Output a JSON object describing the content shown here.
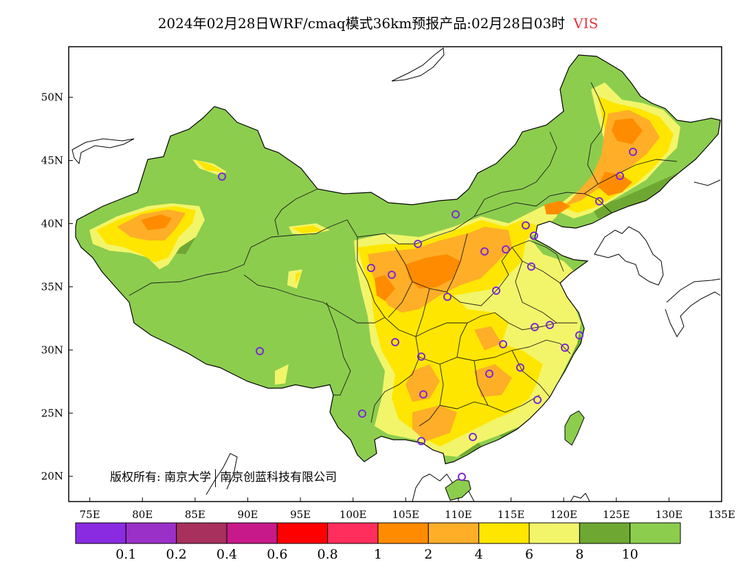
{
  "title": {
    "main": "2024年02月28日WRF/cmaq模式36km预报产品:02月28日03时",
    "variable": "VIS",
    "variable_color": "#e8343c"
  },
  "map": {
    "lon_range": [
      73,
      135
    ],
    "lat_range": [
      18,
      54
    ],
    "lon_ticks": [
      {
        "value": 75,
        "label": "75E"
      },
      {
        "value": 80,
        "label": "80E"
      },
      {
        "value": 85,
        "label": "85E"
      },
      {
        "value": 90,
        "label": "90E"
      },
      {
        "value": 95,
        "label": "95E"
      },
      {
        "value": 100,
        "label": "100E"
      },
      {
        "value": 105,
        "label": "105E"
      },
      {
        "value": 110,
        "label": "110E"
      },
      {
        "value": 115,
        "label": "115E"
      },
      {
        "value": 120,
        "label": "120E"
      },
      {
        "value": 125,
        "label": "125E"
      },
      {
        "value": 130,
        "label": "130E"
      },
      {
        "value": 135,
        "label": "135E"
      }
    ],
    "lat_ticks": [
      {
        "value": 50,
        "label": "50N"
      },
      {
        "value": 45,
        "label": "45N"
      },
      {
        "value": 40,
        "label": "40N"
      },
      {
        "value": 35,
        "label": "35N"
      },
      {
        "value": 30,
        "label": "30N"
      },
      {
        "value": 25,
        "label": "25N"
      },
      {
        "value": 20,
        "label": "20N"
      }
    ]
  },
  "legend": {
    "colors": [
      "#8a2be2",
      "#9b30c8",
      "#a8305c",
      "#c8198a",
      "#ff0000",
      "#ff2e5c",
      "#ff8c00",
      "#ffae28",
      "#ffe600",
      "#f2f56a",
      "#6ea832",
      "#8ccd4e"
    ],
    "labels": [
      "0.1",
      "0.2",
      "0.4",
      "0.6",
      "0.8",
      "1",
      "2",
      "4",
      "6",
      "8",
      "10"
    ]
  },
  "credit": {
    "prefix": "版权所有:",
    "org1": "南京大学",
    "org2": "南京创蓝科技有限公司"
  }
}
